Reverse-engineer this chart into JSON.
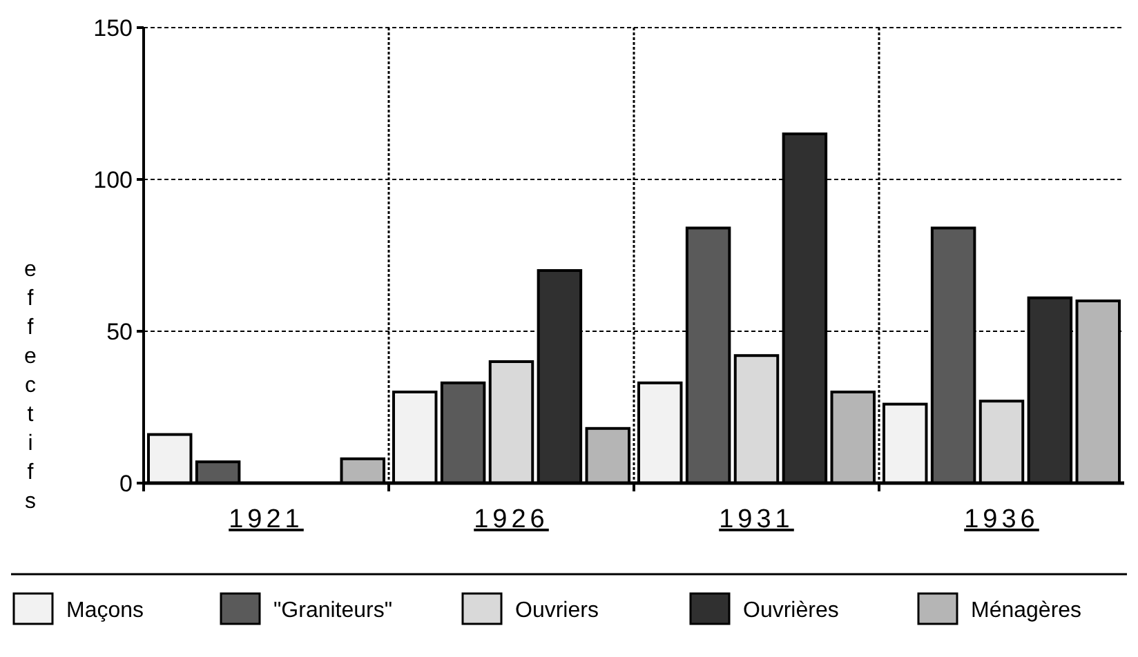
{
  "chart_data": {
    "type": "bar",
    "ylabel": "effectifs",
    "categories": [
      "1921",
      "1926",
      "1931",
      "1936"
    ],
    "series": [
      {
        "name": "Maçons",
        "color": "#f2f2f2",
        "values": [
          16,
          30,
          33,
          26
        ]
      },
      {
        "name": "\"Graniteurs\"",
        "color": "#5a5a5a",
        "values": [
          7,
          33,
          84,
          84
        ]
      },
      {
        "name": "Ouvriers",
        "color": "#d9d9d9",
        "values": [
          0,
          40,
          42,
          27
        ]
      },
      {
        "name": "Ouvrières",
        "color": "#303030",
        "values": [
          0,
          70,
          115,
          61
        ]
      },
      {
        "name": "Ménagères",
        "color": "#b5b5b5",
        "values": [
          8,
          18,
          30,
          60
        ]
      }
    ],
    "ylim": [
      0,
      150
    ],
    "yticks": [
      0,
      50,
      100,
      150
    ],
    "grid": true,
    "legend": "bottom"
  }
}
